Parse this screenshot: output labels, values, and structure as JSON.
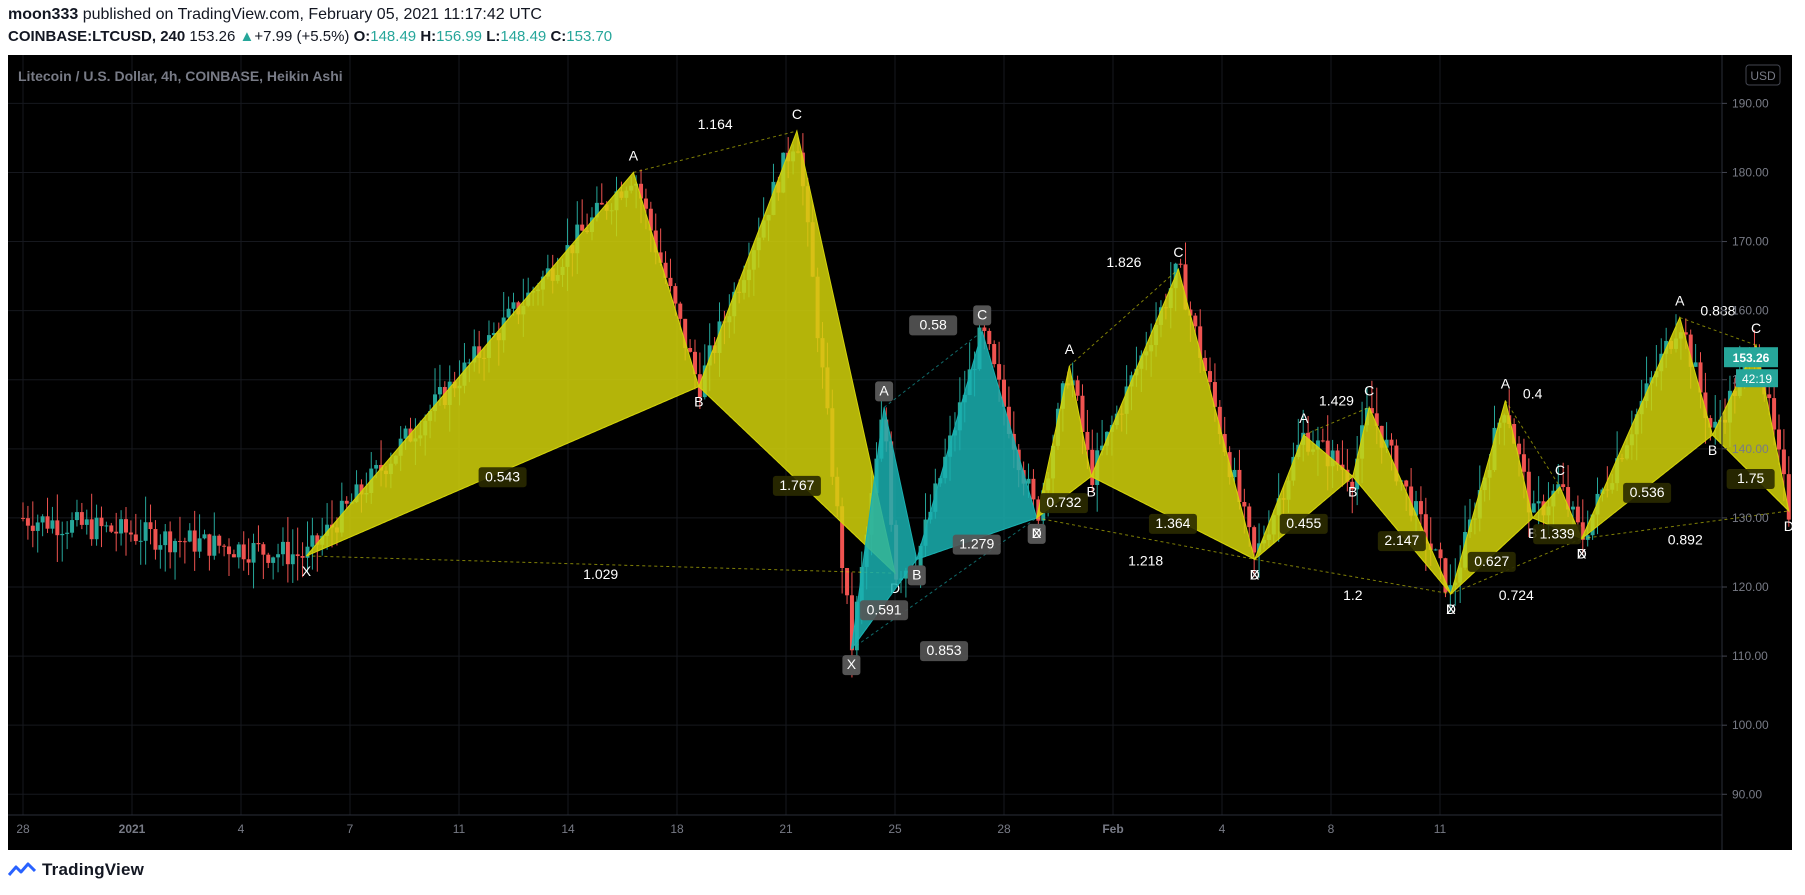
{
  "header": {
    "author": "moon333",
    "published": "published on TradingView.com, February 05, 2021 11:17:42 UTC",
    "symbol": "COINBASE:LTCUSD, 240",
    "last": "153.26",
    "change_arrow": "▲",
    "change": "+7.99 (+5.5%)",
    "o_label": "O:",
    "o_value": "148.49",
    "h_label": "H:",
    "h_value": "156.99",
    "l_label": "L:",
    "l_value": "148.49",
    "c_label": "C:",
    "c_value": "153.70"
  },
  "legend_title": "Litecoin / U.S. Dollar, 4h, COINBASE, Heikin Ashi",
  "currency_button": "USD",
  "footer": {
    "brand": "TradingView"
  },
  "colors": {
    "up": "#26a69a",
    "down": "#ef5350",
    "pattern_yellow": "#d4d40a",
    "pattern_teal": "#1ab0b0",
    "price_tag": "#26a69a"
  },
  "chart_data": {
    "type": "candlestick",
    "title": "Litecoin / U.S. Dollar, 4h, COINBASE, Heikin Ashi",
    "ylim": [
      87,
      197
    ],
    "y_ticks": [
      "190.00",
      "180.00",
      "170.00",
      "160.00",
      "150.00",
      "140.00",
      "130.00",
      "120.00",
      "110.00",
      "100.00",
      "90.00"
    ],
    "x_ticks": [
      "28",
      "2021",
      "4",
      "7",
      "11",
      "14",
      "18",
      "21",
      "25",
      "28",
      "Feb",
      "4",
      "8",
      "11"
    ],
    "last_price": "153.26",
    "countdown": "42:19",
    "patterns": [
      {
        "color": "yellow",
        "points": [
          [
            "X",
            2.6,
            124.5
          ],
          [
            "A",
            5.6,
            180
          ],
          [
            "B",
            6.2,
            149
          ],
          [
            "C",
            7.1,
            186
          ],
          [
            "D",
            8.0,
            122
          ]
        ],
        "ratios": [
          "0.543",
          "1.164",
          "1.767",
          "1.029"
        ]
      },
      {
        "color": "teal",
        "points": [
          [
            "X",
            7.6,
            111
          ],
          [
            "A",
            7.9,
            146
          ],
          [
            "B",
            8.2,
            124
          ],
          [
            "C",
            8.8,
            157
          ],
          [
            "D",
            9.3,
            130
          ]
        ],
        "ratios": [
          "0.591",
          "0.58",
          "1.279",
          "0.853"
        ]
      },
      {
        "color": "yellow",
        "points": [
          [
            "X",
            9.3,
            130
          ],
          [
            "A",
            9.6,
            152
          ],
          [
            "B",
            9.8,
            136
          ],
          [
            "C",
            10.6,
            166
          ],
          [
            "D",
            11.3,
            124
          ]
        ],
        "ratios": [
          "0.732",
          "1.826",
          "1.364",
          "1.218"
        ]
      },
      {
        "color": "yellow",
        "points": [
          [
            "X",
            11.3,
            124
          ],
          [
            "A",
            11.75,
            142
          ],
          [
            "B",
            12.2,
            136
          ],
          [
            "C",
            12.35,
            146
          ],
          [
            "D",
            13.1,
            119
          ]
        ],
        "ratios": [
          "0.455",
          "1.429",
          "2.147",
          "1.2"
        ]
      },
      {
        "color": "yellow",
        "points": [
          [
            "X",
            13.1,
            119
          ],
          [
            "A",
            13.6,
            147
          ],
          [
            "B",
            13.85,
            130
          ],
          [
            "C",
            14.1,
            134.5
          ],
          [
            "D",
            14.3,
            127
          ]
        ],
        "ratios": [
          "0.627",
          "0.4",
          "1.339",
          "0.724"
        ]
      },
      {
        "color": "yellow",
        "points": [
          [
            "X",
            14.3,
            127
          ],
          [
            "A",
            15.2,
            159
          ],
          [
            "B",
            15.5,
            142
          ],
          [
            "C",
            15.9,
            155
          ],
          [
            "D",
            16.2,
            131
          ]
        ],
        "ratios": [
          "0.536",
          "0.888",
          "1.75",
          "0.892"
        ]
      }
    ]
  }
}
